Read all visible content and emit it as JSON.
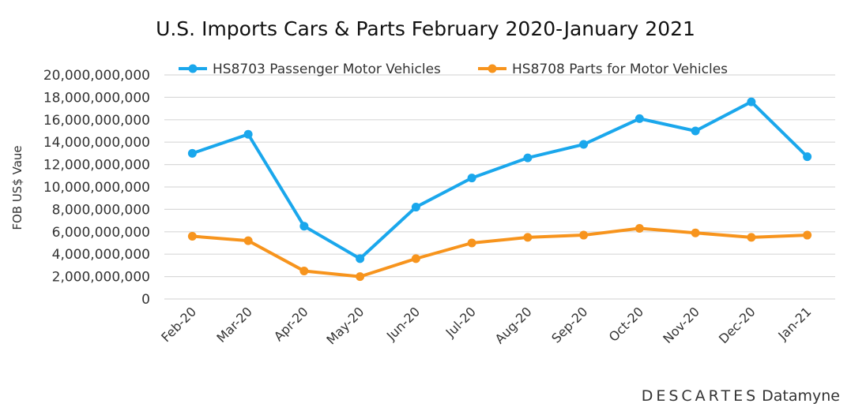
{
  "chart_data": {
    "type": "line",
    "title": "U.S. Imports Cars & Parts February 2020-January 2021",
    "ylabel": "FOB US$ Vaue",
    "xlabel": "",
    "categories": [
      "Feb-20",
      "Mar-20",
      "Apr-20",
      "May-20",
      "Jun-20",
      "Jul-20",
      "Aug-20",
      "Sep-20",
      "Oct-20",
      "Nov-20",
      "Dec-20",
      "Jan-21"
    ],
    "ylim": [
      0,
      20000000000
    ],
    "yticks": [
      0,
      2000000000,
      4000000000,
      6000000000,
      8000000000,
      10000000000,
      12000000000,
      14000000000,
      16000000000,
      18000000000,
      20000000000
    ],
    "ytick_labels": [
      "0",
      "2,000,000,000",
      "4,000,000,000",
      "6,000,000,000",
      "8,000,000,000",
      "10,000,000,000",
      "12,000,000,000",
      "14,000,000,000",
      "16,000,000,000",
      "18,000,000,000",
      "20,000,000,000"
    ],
    "grid": true,
    "legend_position": "top",
    "series": [
      {
        "name": "HS8703 Passenger Motor Vehicles",
        "color": "#1aa7ec",
        "values": [
          13000000000,
          14700000000,
          6500000000,
          3600000000,
          8200000000,
          10800000000,
          12600000000,
          13800000000,
          16100000000,
          15000000000,
          17600000000,
          12700000000
        ]
      },
      {
        "name": "HS8708 Parts for Motor Vehicles",
        "color": "#f7941d",
        "values": [
          5600000000,
          5200000000,
          2500000000,
          2000000000,
          3600000000,
          5000000000,
          5500000000,
          5700000000,
          6300000000,
          5900000000,
          5500000000,
          5700000000
        ]
      }
    ]
  },
  "branding": {
    "company": "DESCARTES",
    "product": "Datamyne"
  }
}
